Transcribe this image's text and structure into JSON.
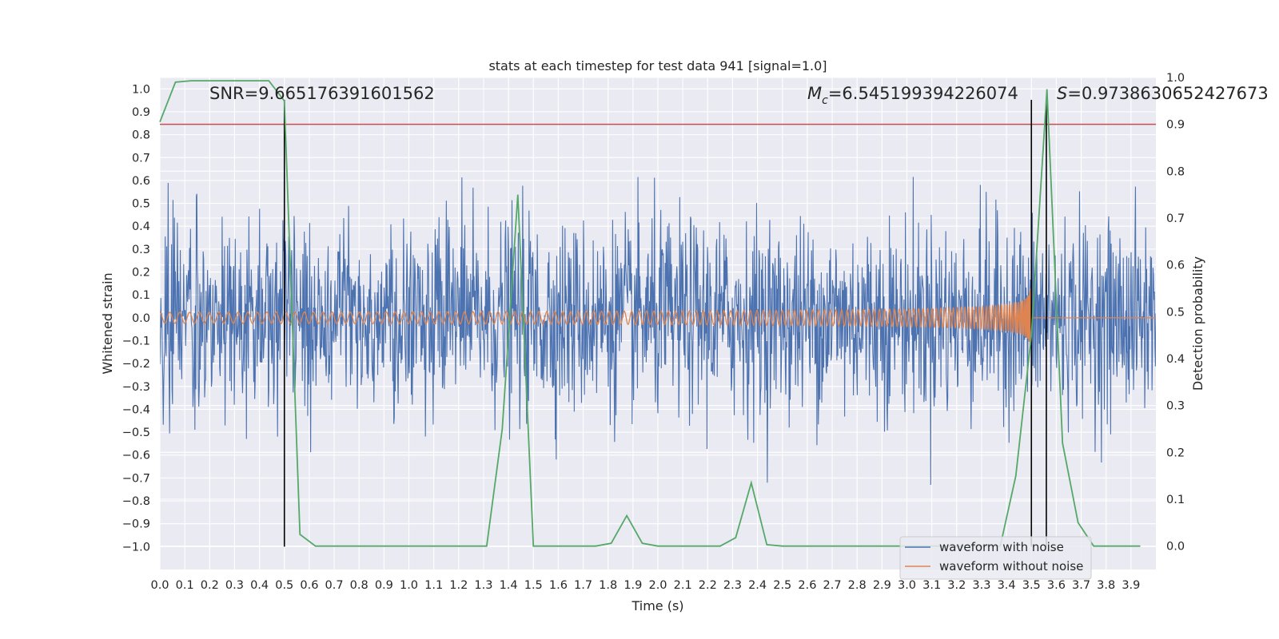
{
  "chart_data": {
    "type": "line",
    "title": "stats at each timestep for test data 941 [signal=1.0]",
    "xlabel": "Time (s)",
    "ylabel": "Whitened strain",
    "y2label": "Detection probability",
    "xlim": [
      0.0,
      4.0
    ],
    "ylim": [
      -1.1,
      1.05
    ],
    "y2lim": [
      -0.05,
      1.0
    ],
    "grid": true,
    "x_ticks": [
      "0.0",
      "0.1",
      "0.2",
      "0.3",
      "0.4",
      "0.5",
      "0.6",
      "0.7",
      "0.8",
      "0.9",
      "1.0",
      "1.1",
      "1.2",
      "1.3",
      "1.4",
      "1.5",
      "1.6",
      "1.7",
      "1.8",
      "1.9",
      "2.0",
      "2.1",
      "2.2",
      "2.3",
      "2.4",
      "2.5",
      "2.6",
      "2.7",
      "2.8",
      "2.9",
      "3.0",
      "3.1",
      "3.2",
      "3.3",
      "3.4",
      "3.5",
      "3.6",
      "3.7",
      "3.8",
      "3.9"
    ],
    "y_ticks": [
      "1.0",
      "0.9",
      "0.8",
      "0.7",
      "0.6",
      "0.5",
      "0.4",
      "0.3",
      "0.2",
      "0.1",
      "0.0",
      "−0.1",
      "−0.2",
      "−0.3",
      "−0.4",
      "−0.5",
      "−0.6",
      "−0.7",
      "−0.8",
      "−0.9",
      "−1.0"
    ],
    "y2_ticks": [
      "1.0",
      "0.9",
      "0.8",
      "0.7",
      "0.6",
      "0.5",
      "0.4",
      "0.3",
      "0.2",
      "0.1",
      "0.0"
    ],
    "annotations": {
      "snr": "SNR=9.665176391601562",
      "mc_symbol": "M",
      "mc_sub": "c",
      "mc_value": "=6.545199394226074",
      "s_symbol": "S",
      "s_value": "=0.9738630652427673"
    },
    "threshold": 0.9,
    "vertical_lines": [
      0.5,
      3.5,
      3.56
    ],
    "series": [
      {
        "name": "waveform with noise",
        "color": "#4c72b0",
        "noise_std": 0.21,
        "sample_rate": 512
      },
      {
        "name": "waveform without noise",
        "color": "#dd8452",
        "merger_time": 3.5,
        "start_freq": 25
      },
      {
        "name": "detection probability",
        "color": "#55a868",
        "x": [
          0.0,
          0.0625,
          0.125,
          0.1875,
          0.25,
          0.3125,
          0.375,
          0.4375,
          0.5,
          0.5625,
          0.625,
          0.6875,
          0.75,
          0.8125,
          0.875,
          0.9375,
          1.0,
          1.0625,
          1.125,
          1.1875,
          1.25,
          1.3125,
          1.375,
          1.4375,
          1.5,
          1.5625,
          1.625,
          1.6875,
          1.75,
          1.8125,
          1.875,
          1.9375,
          2.0,
          2.0625,
          2.125,
          2.1875,
          2.25,
          2.3125,
          2.375,
          2.4375,
          2.5,
          2.5625,
          2.625,
          2.6875,
          2.75,
          2.8125,
          2.875,
          2.9375,
          3.0,
          3.0625,
          3.125,
          3.1875,
          3.25,
          3.3125,
          3.375,
          3.4375,
          3.5,
          3.5625,
          3.625,
          3.6875,
          3.75,
          3.8125,
          3.875,
          3.9375
        ],
        "values": [
          0.905,
          0.99,
          0.993,
          0.993,
          0.993,
          0.993,
          0.993,
          0.993,
          0.95,
          0.025,
          0.0,
          0.0,
          0.0,
          0.0,
          0.0,
          0.0,
          0.0,
          0.0,
          0.0,
          0.0,
          0.0,
          0.0,
          0.25,
          0.75,
          0.0,
          0.0,
          0.0,
          0.0,
          0.0,
          0.006,
          0.065,
          0.006,
          0.0,
          0.0,
          0.0,
          0.0,
          0.0,
          0.018,
          0.135,
          0.003,
          0.0,
          0.0,
          0.0,
          0.0,
          0.0,
          0.0,
          0.0,
          0.0,
          0.0,
          0.0,
          0.0,
          0.0,
          0.0,
          0.0,
          0.0,
          0.15,
          0.45,
          0.975,
          0.22,
          0.05,
          0.0,
          0.0,
          0.0,
          0.0
        ]
      }
    ],
    "legend_position": "lower-right"
  }
}
